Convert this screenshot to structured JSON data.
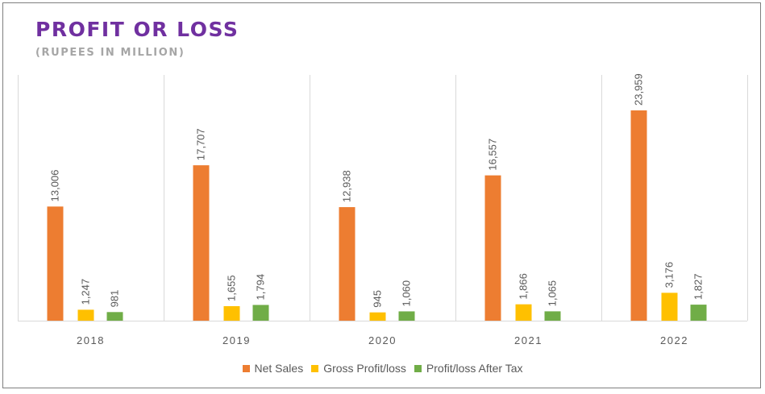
{
  "chart_data": {
    "type": "bar",
    "title": "PROFIT OR LOSS",
    "subtitle": "(RUPEES IN MILLION)",
    "categories": [
      "2018",
      "2019",
      "2020",
      "2021",
      "2022"
    ],
    "series": [
      {
        "name": "Net Sales",
        "color": "#ed7d31",
        "values": [
          13006,
          17707,
          12938,
          16557,
          23959
        ],
        "labels": [
          "13,006",
          "17,707",
          "12,938",
          "16,557",
          "23,959"
        ]
      },
      {
        "name": "Gross Profit/loss",
        "color": "#ffc000",
        "values": [
          1247,
          1655,
          945,
          1866,
          3176
        ],
        "labels": [
          "1,247",
          "1,655",
          "945",
          "1,866",
          "3,176"
        ]
      },
      {
        "name": "Profit/loss After Tax",
        "color": "#70ad47",
        "values": [
          981,
          1794,
          1060,
          1065,
          1827
        ],
        "labels": [
          "981",
          "1,794",
          "1,060",
          "1,065",
          "1,827"
        ]
      }
    ],
    "ylim": [
      0,
      28000
    ],
    "grid": true,
    "legend_position": "bottom"
  }
}
